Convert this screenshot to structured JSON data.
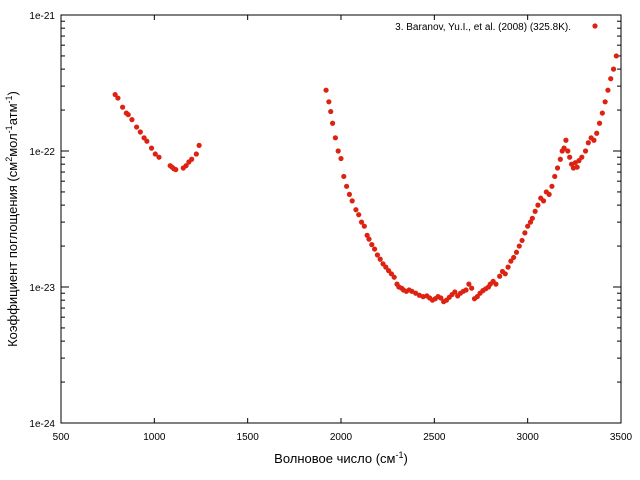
{
  "chart_data": {
    "type": "scatter",
    "xlabel_parts": [
      "Волновое число (см",
      "-1",
      ")"
    ],
    "ylabel_parts": [
      "Коэффициент поглощения (см",
      "2",
      "мол",
      "-1",
      "атм",
      "-1",
      ")"
    ],
    "xlim": [
      500,
      3500
    ],
    "ylim": [
      1e-24,
      1e-21
    ],
    "yscale": "log",
    "grid": false,
    "legend_position": "top-right",
    "x_ticks": [
      500,
      1000,
      1500,
      2000,
      2500,
      3000,
      3500
    ],
    "x_tick_labels": [
      "500",
      "1000",
      "1500",
      "2000",
      "2500",
      "3000",
      "3500"
    ],
    "y_ticks": [
      1e-24,
      1e-23,
      1e-22,
      1e-21
    ],
    "y_tick_labels": [
      "1e-24",
      "1e-23",
      "1e-22",
      "1e-21"
    ],
    "series": [
      {
        "name": "3. Baranov, Yu.I., et al. (2008) (325.8K).",
        "color": "#dd2211",
        "points": [
          [
            790,
            2.6e-22
          ],
          [
            805,
            2.45e-22
          ],
          [
            830,
            2.1e-22
          ],
          [
            850,
            1.9e-22
          ],
          [
            860,
            1.85e-22
          ],
          [
            880,
            1.7e-22
          ],
          [
            905,
            1.5e-22
          ],
          [
            925,
            1.38e-22
          ],
          [
            945,
            1.25e-22
          ],
          [
            960,
            1.18e-22
          ],
          [
            985,
            1.05e-22
          ],
          [
            1005,
            9.5e-23
          ],
          [
            1025,
            9e-23
          ],
          [
            1085,
            7.8e-23
          ],
          [
            1095,
            7.6e-23
          ],
          [
            1105,
            7.4e-23
          ],
          [
            1115,
            7.3e-23
          ],
          [
            1155,
            7.5e-23
          ],
          [
            1170,
            7.8e-23
          ],
          [
            1185,
            8.3e-23
          ],
          [
            1200,
            8.7e-23
          ],
          [
            1225,
            9.5e-23
          ],
          [
            1240,
            1.1e-22
          ],
          [
            1920,
            2.8e-22
          ],
          [
            1935,
            2.3e-22
          ],
          [
            1945,
            1.95e-22
          ],
          [
            1955,
            1.6e-22
          ],
          [
            1970,
            1.25e-22
          ],
          [
            1985,
            1e-22
          ],
          [
            2000,
            8.8e-23
          ],
          [
            2015,
            6.5e-23
          ],
          [
            2030,
            5.5e-23
          ],
          [
            2045,
            4.8e-23
          ],
          [
            2060,
            4.3e-23
          ],
          [
            2080,
            3.7e-23
          ],
          [
            2095,
            3.4e-23
          ],
          [
            2110,
            3e-23
          ],
          [
            2125,
            2.8e-23
          ],
          [
            2140,
            2.4e-23
          ],
          [
            2150,
            2.25e-23
          ],
          [
            2165,
            2.05e-23
          ],
          [
            2180,
            1.9e-23
          ],
          [
            2195,
            1.72e-23
          ],
          [
            2210,
            1.6e-23
          ],
          [
            2225,
            1.48e-23
          ],
          [
            2240,
            1.4e-23
          ],
          [
            2255,
            1.32e-23
          ],
          [
            2270,
            1.25e-23
          ],
          [
            2285,
            1.18e-23
          ],
          [
            2300,
            1.05e-23
          ],
          [
            2310,
            1e-23
          ],
          [
            2325,
            9.8e-24
          ],
          [
            2335,
            9.5e-24
          ],
          [
            2350,
            9.3e-24
          ],
          [
            2365,
            9.5e-24
          ],
          [
            2380,
            9.3e-24
          ],
          [
            2400,
            9e-24
          ],
          [
            2420,
            8.7e-24
          ],
          [
            2440,
            8.5e-24
          ],
          [
            2460,
            8.6e-24
          ],
          [
            2475,
            8.3e-24
          ],
          [
            2490,
            8e-24
          ],
          [
            2505,
            8.2e-24
          ],
          [
            2520,
            8.5e-24
          ],
          [
            2535,
            8.3e-24
          ],
          [
            2550,
            7.8e-24
          ],
          [
            2565,
            8e-24
          ],
          [
            2580,
            8.4e-24
          ],
          [
            2595,
            8.8e-24
          ],
          [
            2610,
            9.2e-24
          ],
          [
            2625,
            8.6e-24
          ],
          [
            2640,
            9e-24
          ],
          [
            2655,
            9.3e-24
          ],
          [
            2670,
            9.5e-24
          ],
          [
            2685,
            1.05e-23
          ],
          [
            2700,
            9.8e-24
          ],
          [
            2715,
            8.2e-24
          ],
          [
            2730,
            8.5e-24
          ],
          [
            2745,
            9e-24
          ],
          [
            2760,
            9.4e-24
          ],
          [
            2775,
            9.7e-24
          ],
          [
            2790,
            1e-23
          ],
          [
            2800,
            1.05e-23
          ],
          [
            2815,
            1.1e-23
          ],
          [
            2830,
            1.05e-23
          ],
          [
            2850,
            1.2e-23
          ],
          [
            2865,
            1.3e-23
          ],
          [
            2880,
            1.25e-23
          ],
          [
            2895,
            1.4e-23
          ],
          [
            2910,
            1.55e-23
          ],
          [
            2925,
            1.65e-23
          ],
          [
            2940,
            1.8e-23
          ],
          [
            2955,
            2e-23
          ],
          [
            2970,
            2.2e-23
          ],
          [
            2985,
            2.5e-23
          ],
          [
            3000,
            2.8e-23
          ],
          [
            3015,
            3e-23
          ],
          [
            3025,
            3.2e-23
          ],
          [
            3040,
            3.6e-23
          ],
          [
            3055,
            4e-23
          ],
          [
            3070,
            4.5e-23
          ],
          [
            3085,
            4.3e-23
          ],
          [
            3100,
            5e-23
          ],
          [
            3115,
            4.8e-23
          ],
          [
            3130,
            5.5e-23
          ],
          [
            3145,
            6.5e-23
          ],
          [
            3160,
            7.5e-23
          ],
          [
            3175,
            8.7e-23
          ],
          [
            3185,
            1e-22
          ],
          [
            3195,
            1.05e-22
          ],
          [
            3205,
            1.2e-22
          ],
          [
            3215,
            1e-22
          ],
          [
            3225,
            9e-23
          ],
          [
            3235,
            8e-23
          ],
          [
            3245,
            7.5e-23
          ],
          [
            3255,
            8.2e-23
          ],
          [
            3265,
            7.6e-23
          ],
          [
            3275,
            8.5e-23
          ],
          [
            3290,
            9e-23
          ],
          [
            3310,
            1e-22
          ],
          [
            3325,
            1.15e-22
          ],
          [
            3340,
            1.25e-22
          ],
          [
            3355,
            1.2e-22
          ],
          [
            3370,
            1.35e-22
          ],
          [
            3385,
            1.6e-22
          ],
          [
            3400,
            1.9e-22
          ],
          [
            3415,
            2.3e-22
          ],
          [
            3430,
            2.8e-22
          ],
          [
            3445,
            3.4e-22
          ],
          [
            3460,
            4e-22
          ],
          [
            3475,
            5e-22
          ]
        ]
      }
    ]
  }
}
